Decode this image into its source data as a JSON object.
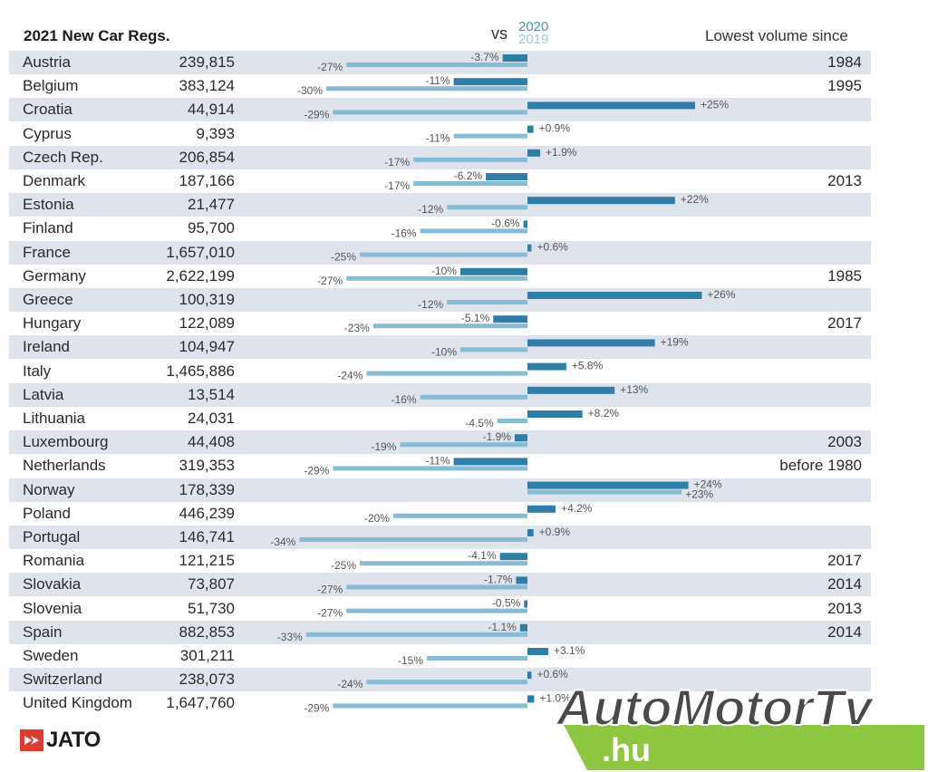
{
  "header": {
    "title": "2021 New Car Regs.",
    "vs": "vs",
    "year_2020": "2020",
    "year_2019": "2019",
    "lowest_since": "Lowest volume since"
  },
  "colors": {
    "bar_2020": "#2f7ea8",
    "bar_2019": "#86bcd6",
    "row_shade": "#dfe4ec",
    "jato_red": "#e03a2f",
    "logo_green": "#8dc63f",
    "logo_dark": "#4a4a4a"
  },
  "chart_data": {
    "type": "bar",
    "series": [
      {
        "name": "2020",
        "values": [
          -3.7,
          -11,
          25,
          0.9,
          1.9,
          -6.2,
          22,
          -0.6,
          0.6,
          -10,
          26,
          -5.1,
          19,
          5.8,
          13,
          8.2,
          -1.9,
          -11,
          24,
          4.2,
          0.9,
          -4.1,
          -1.7,
          -0.5,
          -1.1,
          3.1,
          0.6,
          1.0
        ]
      },
      {
        "name": "2019",
        "values": [
          -27,
          -30,
          -29,
          -11,
          -17,
          -17,
          -12,
          -16,
          -25,
          -27,
          -12,
          -23,
          -10,
          -24,
          -16,
          -4.5,
          -19,
          -29,
          23,
          -20,
          -34,
          -25,
          -27,
          -27,
          -33,
          -15,
          -24,
          -29
        ]
      }
    ],
    "rows": [
      {
        "country": "Austria",
        "volume": "239,815",
        "pct_2020": "-3.7%",
        "pct_2019": "-27%",
        "lowest": "1984"
      },
      {
        "country": "Belgium",
        "volume": "383,124",
        "pct_2020": "-11%",
        "pct_2019": "-30%",
        "lowest": "1995"
      },
      {
        "country": "Croatia",
        "volume": "44,914",
        "pct_2020": "+25%",
        "pct_2019": "-29%",
        "lowest": ""
      },
      {
        "country": "Cyprus",
        "volume": "9,393",
        "pct_2020": "+0.9%",
        "pct_2019": "-11%",
        "lowest": ""
      },
      {
        "country": "Czech Rep.",
        "volume": "206,854",
        "pct_2020": "+1.9%",
        "pct_2019": "-17%",
        "lowest": ""
      },
      {
        "country": "Denmark",
        "volume": "187,166",
        "pct_2020": "-6.2%",
        "pct_2019": "-17%",
        "lowest": "2013"
      },
      {
        "country": "Estonia",
        "volume": "21,477",
        "pct_2020": "+22%",
        "pct_2019": "-12%",
        "lowest": ""
      },
      {
        "country": "Finland",
        "volume": "95,700",
        "pct_2020": "-0.6%",
        "pct_2019": "-16%",
        "lowest": ""
      },
      {
        "country": "France",
        "volume": "1,657,010",
        "pct_2020": "+0.6%",
        "pct_2019": "-25%",
        "lowest": ""
      },
      {
        "country": "Germany",
        "volume": "2,622,199",
        "pct_2020": "-10%",
        "pct_2019": "-27%",
        "lowest": "1985"
      },
      {
        "country": "Greece",
        "volume": "100,319",
        "pct_2020": "+26%",
        "pct_2019": "-12%",
        "lowest": ""
      },
      {
        "country": "Hungary",
        "volume": "122,089",
        "pct_2020": "-5.1%",
        "pct_2019": "-23%",
        "lowest": "2017"
      },
      {
        "country": "Ireland",
        "volume": "104,947",
        "pct_2020": "+19%",
        "pct_2019": "-10%",
        "lowest": ""
      },
      {
        "country": "Italy",
        "volume": "1,465,886",
        "pct_2020": "+5.8%",
        "pct_2019": "-24%",
        "lowest": ""
      },
      {
        "country": "Latvia",
        "volume": "13,514",
        "pct_2020": "+13%",
        "pct_2019": "-16%",
        "lowest": ""
      },
      {
        "country": "Lithuania",
        "volume": "24,031",
        "pct_2020": "+8.2%",
        "pct_2019": "-4.5%",
        "lowest": ""
      },
      {
        "country": "Luxembourg",
        "volume": "44,408",
        "pct_2020": "-1.9%",
        "pct_2019": "-19%",
        "lowest": "2003"
      },
      {
        "country": "Netherlands",
        "volume": "319,353",
        "pct_2020": "-11%",
        "pct_2019": "-29%",
        "lowest": "before 1980"
      },
      {
        "country": "Norway",
        "volume": "178,339",
        "pct_2020": "+24%",
        "pct_2019": "+23%",
        "lowest": ""
      },
      {
        "country": "Poland",
        "volume": "446,239",
        "pct_2020": "+4.2%",
        "pct_2019": "-20%",
        "lowest": ""
      },
      {
        "country": "Portugal",
        "volume": "146,741",
        "pct_2020": "+0.9%",
        "pct_2019": "-34%",
        "lowest": ""
      },
      {
        "country": "Romania",
        "volume": "121,215",
        "pct_2020": "-4.1%",
        "pct_2019": "-25%",
        "lowest": "2017"
      },
      {
        "country": "Slovakia",
        "volume": "73,807",
        "pct_2020": "-1.7%",
        "pct_2019": "-27%",
        "lowest": "2014"
      },
      {
        "country": "Slovenia",
        "volume": "51,730",
        "pct_2020": "-0.5%",
        "pct_2019": "-27%",
        "lowest": "2013"
      },
      {
        "country": "Spain",
        "volume": "882,853",
        "pct_2020": "-1.1%",
        "pct_2019": "-33%",
        "lowest": "2014"
      },
      {
        "country": "Sweden",
        "volume": "301,211",
        "pct_2020": "+3.1%",
        "pct_2019": "-15%",
        "lowest": ""
      },
      {
        "country": "Switzerland",
        "volume": "238,073",
        "pct_2020": "+0.6%",
        "pct_2019": "-24%",
        "lowest": ""
      },
      {
        "country": "United Kingdom",
        "volume": "1,647,760",
        "pct_2020": "+1.0%",
        "pct_2019": "-29%",
        "lowest": ""
      }
    ]
  },
  "footer": {
    "jato_logo": "JATO",
    "watermark_main": "AutoMotorTv",
    "watermark_domain": ".hu"
  }
}
